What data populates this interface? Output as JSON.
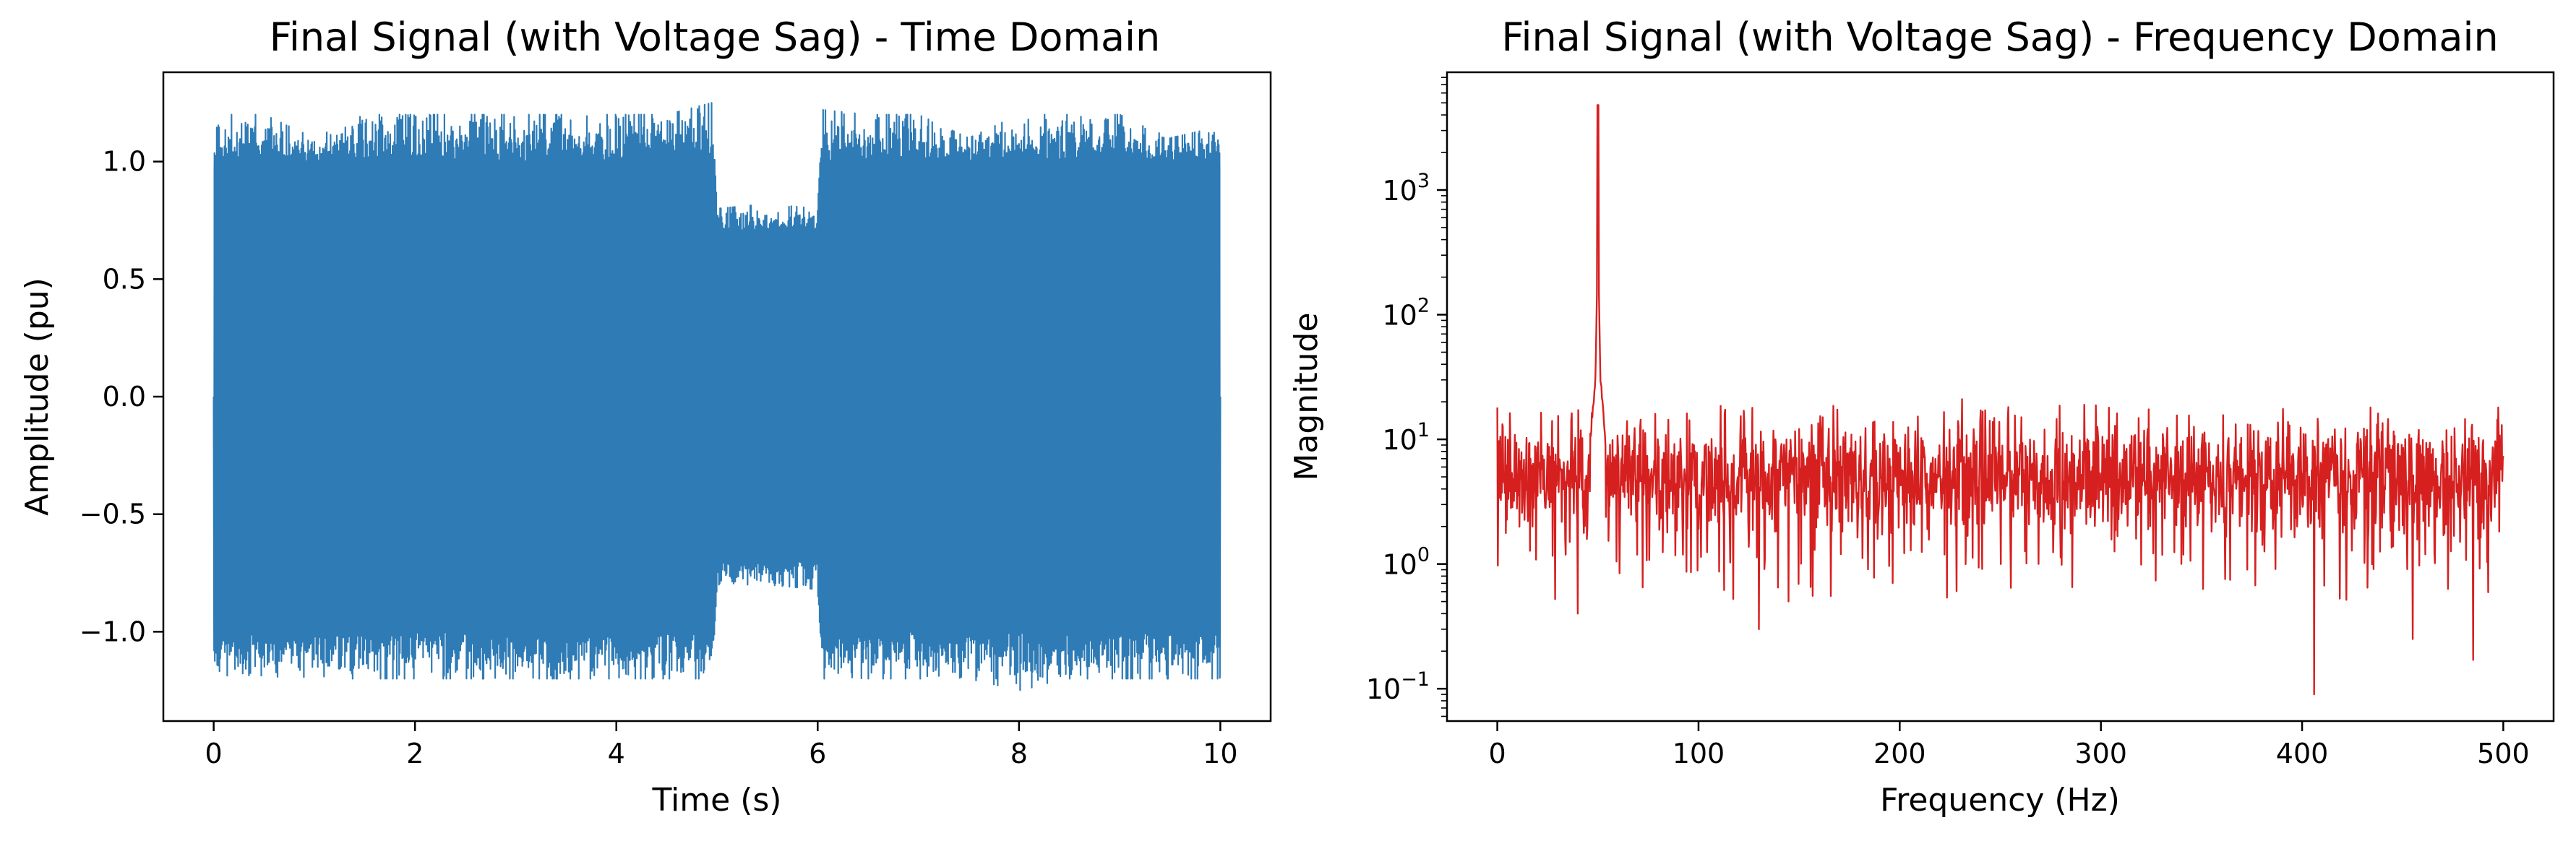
{
  "chart_data": [
    {
      "type": "line",
      "title": "Final Signal (with Voltage Sag) - Time Domain",
      "xlabel": "Time (s)",
      "ylabel": "Amplitude (pu)",
      "xlim": [
        -0.5,
        10.5
      ],
      "ylim": [
        -1.38,
        1.38
      ],
      "xticks": [
        0,
        2,
        4,
        6,
        8,
        10
      ],
      "xtick_labels": [
        "0",
        "2",
        "4",
        "6",
        "8",
        "10"
      ],
      "yticks": [
        -1.0,
        -0.5,
        0.0,
        0.5,
        1.0
      ],
      "ytick_labels": [
        "−1.0",
        "−0.5",
        "0.0",
        "0.5",
        "1.0"
      ],
      "grid": false,
      "color": "#2e7bb6",
      "series": [
        {
          "x_range": [
            0,
            10
          ],
          "fundamental_hz": 50,
          "nominal_amplitude": 1.0,
          "sag": {
            "start": 5.0,
            "end": 6.0,
            "amplitude": 0.7
          },
          "envelope_positive": [
            [
              0.0,
              1.2
            ],
            [
              0.5,
              1.2
            ],
            [
              1.0,
              1.1
            ],
            [
              1.5,
              1.2
            ],
            [
              2.0,
              1.2
            ],
            [
              2.5,
              1.2
            ],
            [
              3.0,
              1.2
            ],
            [
              3.5,
              1.2
            ],
            [
              4.0,
              1.2
            ],
            [
              4.5,
              1.2
            ],
            [
              4.95,
              1.25
            ],
            [
              5.0,
              0.8
            ],
            [
              5.5,
              0.82
            ],
            [
              6.0,
              0.8
            ],
            [
              6.05,
              1.22
            ],
            [
              6.5,
              1.2
            ],
            [
              7.0,
              1.2
            ],
            [
              7.5,
              1.1
            ],
            [
              8.0,
              1.2
            ],
            [
              8.5,
              1.2
            ],
            [
              9.0,
              1.2
            ],
            [
              9.5,
              1.1
            ],
            [
              10.0,
              1.15
            ]
          ],
          "envelope_negative": [
            [
              0.0,
              -1.2
            ],
            [
              0.5,
              -1.2
            ],
            [
              1.0,
              -1.2
            ],
            [
              1.5,
              -1.2
            ],
            [
              2.0,
              -1.2
            ],
            [
              2.5,
              -1.2
            ],
            [
              3.0,
              -1.2
            ],
            [
              3.5,
              -1.2
            ],
            [
              4.0,
              -1.2
            ],
            [
              4.5,
              -1.2
            ],
            [
              4.95,
              -1.2
            ],
            [
              5.0,
              -0.8
            ],
            [
              5.5,
              -0.8
            ],
            [
              6.0,
              -0.82
            ],
            [
              6.05,
              -1.2
            ],
            [
              6.5,
              -1.2
            ],
            [
              7.0,
              -1.2
            ],
            [
              7.5,
              -1.2
            ],
            [
              8.0,
              -1.25
            ],
            [
              8.5,
              -1.2
            ],
            [
              9.0,
              -1.2
            ],
            [
              9.5,
              -1.2
            ],
            [
              10.0,
              -1.2
            ]
          ]
        }
      ]
    },
    {
      "type": "line",
      "title": "Final Signal (with Voltage Sag) - Frequency Domain",
      "xlabel": "Frequency (Hz)",
      "ylabel": "Magnitude",
      "xlim": [
        -25,
        525
      ],
      "ylim": [
        0.055,
        8800
      ],
      "yscale": "log",
      "xticks": [
        0,
        100,
        200,
        300,
        400,
        500
      ],
      "xtick_labels": [
        "0",
        "100",
        "200",
        "300",
        "400",
        "500"
      ],
      "yticks": [
        0.1,
        1,
        10,
        100,
        1000
      ],
      "ytick_labels": [
        {
          "base": "10",
          "exp": "−1"
        },
        {
          "base": "10",
          "exp": "0"
        },
        {
          "base": "10",
          "exp": "1"
        },
        {
          "base": "10",
          "exp": "2"
        },
        {
          "base": "10",
          "exp": "3"
        }
      ],
      "grid": false,
      "color": "#d62020",
      "series": [
        {
          "x_range": [
            0,
            500
          ],
          "noise_floor_median": 5,
          "noise_band": [
            1,
            15
          ],
          "peak": {
            "x": 50,
            "y": 4800
          },
          "shoulder": {
            "x": 50,
            "y": 250
          },
          "notable_points": [
            {
              "x": 0,
              "y": 18
            },
            {
              "x": 40,
              "y": 0.4
            },
            {
              "x": 130,
              "y": 0.3
            },
            {
              "x": 231,
              "y": 21
            },
            {
              "x": 406,
              "y": 0.09
            },
            {
              "x": 434,
              "y": 18
            },
            {
              "x": 455,
              "y": 0.25
            },
            {
              "x": 485,
              "y": 0.17
            }
          ]
        }
      ]
    }
  ]
}
